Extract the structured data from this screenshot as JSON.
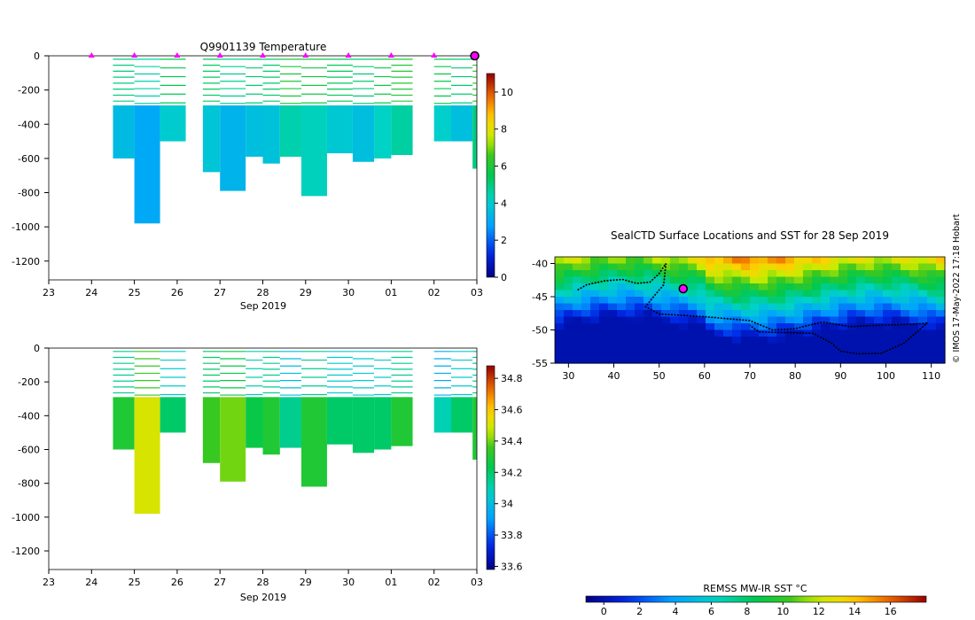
{
  "chart_data": [
    {
      "type": "heatmap",
      "title": "Q9901139  Temperature",
      "xlabel": "Sep 2019",
      "ylabel": "",
      "x_ticks": [
        "23",
        "24",
        "25",
        "26",
        "27",
        "28",
        "29",
        "30",
        "01",
        "02",
        "03"
      ],
      "x_range": [
        23,
        33
      ],
      "y_ticks": [
        "0",
        "-200",
        "-400",
        "-600",
        "-800",
        "-1000",
        "-1200"
      ],
      "y_range": [
        -1310,
        0
      ],
      "colorbar": {
        "ticks": [
          "0",
          "2",
          "4",
          "6",
          "8",
          "10"
        ],
        "range": [
          0,
          11
        ],
        "label": ""
      },
      "surface_markers_x": [
        24,
        25,
        26,
        27,
        28,
        29,
        30,
        31,
        32
      ],
      "current_marker_x": 32.95,
      "profiles": [
        {
          "x": [
            24.5,
            25.0
          ],
          "max_depth": -600,
          "value": 3.5
        },
        {
          "x": [
            25.0,
            25.6
          ],
          "max_depth": -980,
          "value": 3.0
        },
        {
          "x": [
            25.6,
            26.2
          ],
          "max_depth": -500,
          "value": 4.0
        },
        {
          "x": [
            26.6,
            27.0
          ],
          "max_depth": -680,
          "value": 3.8
        },
        {
          "x": [
            27.0,
            27.6
          ],
          "max_depth": -790,
          "value": 3.3
        },
        {
          "x": [
            27.6,
            28.0
          ],
          "max_depth": -590,
          "value": 3.6
        },
        {
          "x": [
            28.0,
            28.4
          ],
          "max_depth": -630,
          "value": 3.7
        },
        {
          "x": [
            28.4,
            28.9
          ],
          "max_depth": -590,
          "value": 4.5
        },
        {
          "x": [
            28.9,
            29.5
          ],
          "max_depth": -820,
          "value": 4.3
        },
        {
          "x": [
            29.5,
            30.1
          ],
          "max_depth": -570,
          "value": 3.9
        },
        {
          "x": [
            30.1,
            30.6
          ],
          "max_depth": -620,
          "value": 3.6
        },
        {
          "x": [
            30.6,
            31.0
          ],
          "max_depth": -600,
          "value": 4.2
        },
        {
          "x": [
            31.0,
            31.5
          ],
          "max_depth": -580,
          "value": 4.6
        },
        {
          "x": [
            32.0,
            32.4
          ],
          "max_depth": -500,
          "value": 4.1
        },
        {
          "x": [
            32.4,
            32.9
          ],
          "max_depth": -500,
          "value": 3.6
        },
        {
          "x": [
            32.9,
            33.0
          ],
          "max_depth": -660,
          "value": 5.0
        }
      ]
    },
    {
      "type": "heatmap",
      "title": "",
      "xlabel": "Sep 2019",
      "ylabel": "",
      "x_ticks": [
        "23",
        "24",
        "25",
        "26",
        "27",
        "28",
        "29",
        "30",
        "01",
        "02",
        "03"
      ],
      "x_range": [
        23,
        33
      ],
      "y_ticks": [
        "0",
        "-200",
        "-400",
        "-600",
        "-800",
        "-1000",
        "-1200"
      ],
      "y_range": [
        -1310,
        0
      ],
      "colorbar": {
        "ticks": [
          "33.6",
          "33.8",
          "34",
          "34.2",
          "34.4",
          "34.6",
          "34.8"
        ],
        "range": [
          33.58,
          34.88
        ],
        "label": ""
      },
      "profiles": [
        {
          "x": [
            24.5,
            25.0
          ],
          "max_depth": -600,
          "value": 34.3
        },
        {
          "x": [
            25.0,
            25.6
          ],
          "max_depth": -980,
          "value": 34.5
        },
        {
          "x": [
            25.6,
            26.2
          ],
          "max_depth": -500,
          "value": 34.2
        },
        {
          "x": [
            26.6,
            27.0
          ],
          "max_depth": -680,
          "value": 34.35
        },
        {
          "x": [
            27.0,
            27.6
          ],
          "max_depth": -790,
          "value": 34.4
        },
        {
          "x": [
            27.6,
            28.0
          ],
          "max_depth": -590,
          "value": 34.25
        },
        {
          "x": [
            28.0,
            28.4
          ],
          "max_depth": -630,
          "value": 34.3
        },
        {
          "x": [
            28.4,
            28.9
          ],
          "max_depth": -590,
          "value": 34.15
        },
        {
          "x": [
            28.9,
            29.5
          ],
          "max_depth": -820,
          "value": 34.3
        },
        {
          "x": [
            29.5,
            30.1
          ],
          "max_depth": -570,
          "value": 34.2
        },
        {
          "x": [
            30.1,
            30.6
          ],
          "max_depth": -620,
          "value": 34.2
        },
        {
          "x": [
            30.6,
            31.0
          ],
          "max_depth": -600,
          "value": 34.2
        },
        {
          "x": [
            31.0,
            31.5
          ],
          "max_depth": -580,
          "value": 34.3
        },
        {
          "x": [
            32.0,
            32.4
          ],
          "max_depth": -500,
          "value": 34.1
        },
        {
          "x": [
            32.4,
            32.9
          ],
          "max_depth": -500,
          "value": 34.2
        },
        {
          "x": [
            32.9,
            33.0
          ],
          "max_depth": -660,
          "value": 34.3
        }
      ]
    },
    {
      "type": "heatmap",
      "title": "SealCTD Surface Locations and SST for 28 Sep 2019",
      "xlabel": "",
      "ylabel": "",
      "x_ticks": [
        "30",
        "40",
        "50",
        "60",
        "70",
        "80",
        "90",
        "100",
        "110"
      ],
      "x_range": [
        27,
        113
      ],
      "y_ticks": [
        "-40",
        "-45",
        "-50",
        "-55"
      ],
      "y_range": [
        -55,
        -39
      ],
      "colorbar": {
        "ticks": [
          "0",
          "2",
          "4",
          "6",
          "8",
          "10",
          "12",
          "14",
          "16"
        ],
        "range": [
          -1,
          18
        ],
        "label": "REMSS MW-IR SST °C"
      },
      "track_lonlat": [
        [
          32,
          -44
        ],
        [
          34,
          -43.2
        ],
        [
          38,
          -42.6
        ],
        [
          42,
          -42.4
        ],
        [
          45,
          -43
        ],
        [
          48,
          -42.8
        ],
        [
          50,
          -41.5
        ],
        [
          51.5,
          -40
        ],
        [
          51,
          -43.2
        ],
        [
          49,
          -44.8
        ],
        [
          47,
          -46.5
        ],
        [
          50,
          -47.6
        ],
        [
          55,
          -47.8
        ],
        [
          60,
          -48
        ],
        [
          65,
          -48.3
        ],
        [
          70,
          -48.6
        ],
        [
          75,
          -50
        ],
        [
          80,
          -49.8
        ],
        [
          86,
          -48.8
        ],
        [
          92,
          -49.5
        ],
        [
          98,
          -49.3
        ],
        [
          104,
          -49.2
        ],
        [
          109,
          -49
        ],
        [
          104,
          -52
        ],
        [
          99,
          -53.5
        ],
        [
          94,
          -53.6
        ],
        [
          90,
          -53.2
        ],
        [
          88,
          -52
        ],
        [
          84,
          -50.5
        ],
        [
          78,
          -50.4
        ],
        [
          72,
          -50.3
        ],
        [
          70,
          -49.3
        ]
      ],
      "current_position": [
        55.3,
        -43.8
      ]
    }
  ],
  "credit_text": "© IMOS 17-May-2022 17:18 Hobart"
}
